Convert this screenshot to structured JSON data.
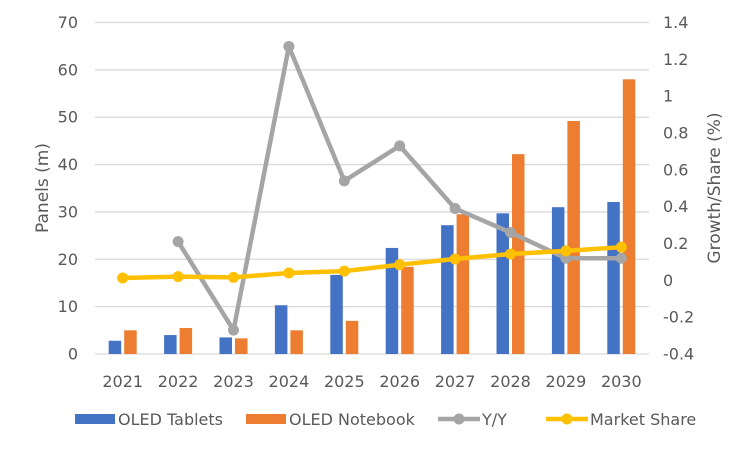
{
  "chart_data": {
    "type": "bar",
    "title": "",
    "categories": [
      "2021",
      "2022",
      "2023",
      "2024",
      "2025",
      "2026",
      "2027",
      "2028",
      "2029",
      "2030"
    ],
    "series": [
      {
        "name": "OLED Tablets",
        "kind": "bar",
        "axis": "left",
        "color": "#4472C4",
        "values": [
          2.8,
          4.0,
          3.5,
          10.3,
          16.7,
          22.4,
          27.2,
          29.7,
          31.0,
          32.1
        ]
      },
      {
        "name": "OLED Notebook",
        "kind": "bar",
        "axis": "left",
        "color": "#ED7D31",
        "values": [
          5.0,
          5.5,
          3.3,
          5.0,
          7.0,
          18.4,
          29.5,
          42.2,
          49.2,
          58.0
        ]
      },
      {
        "name": "Y/Y",
        "kind": "line",
        "axis": "right",
        "color": "#A5A5A5",
        "values": [
          null,
          0.21,
          -0.27,
          1.27,
          0.54,
          0.73,
          0.39,
          0.26,
          0.12,
          0.12
        ]
      },
      {
        "name": "Market Share",
        "kind": "line",
        "axis": "right",
        "color": "#FFC000",
        "values": [
          0.013,
          0.02,
          0.016,
          0.04,
          0.05,
          0.085,
          0.116,
          0.143,
          0.16,
          0.18
        ]
      }
    ],
    "ylabel": "Panels (m)",
    "ylim": [
      0,
      70
    ],
    "yticks": [
      "0",
      "10",
      "20",
      "30",
      "40",
      "50",
      "60",
      "70"
    ],
    "y2label": "Growth/Share (%)",
    "y2lim": [
      -0.4,
      1.4
    ],
    "y2ticks": [
      "-0.4",
      "-0.2",
      "0",
      "0.2",
      "0.4",
      "0.6",
      "0.8",
      "1",
      "1.2",
      "1.4"
    ],
    "grid": true,
    "legend_position": "bottom"
  }
}
